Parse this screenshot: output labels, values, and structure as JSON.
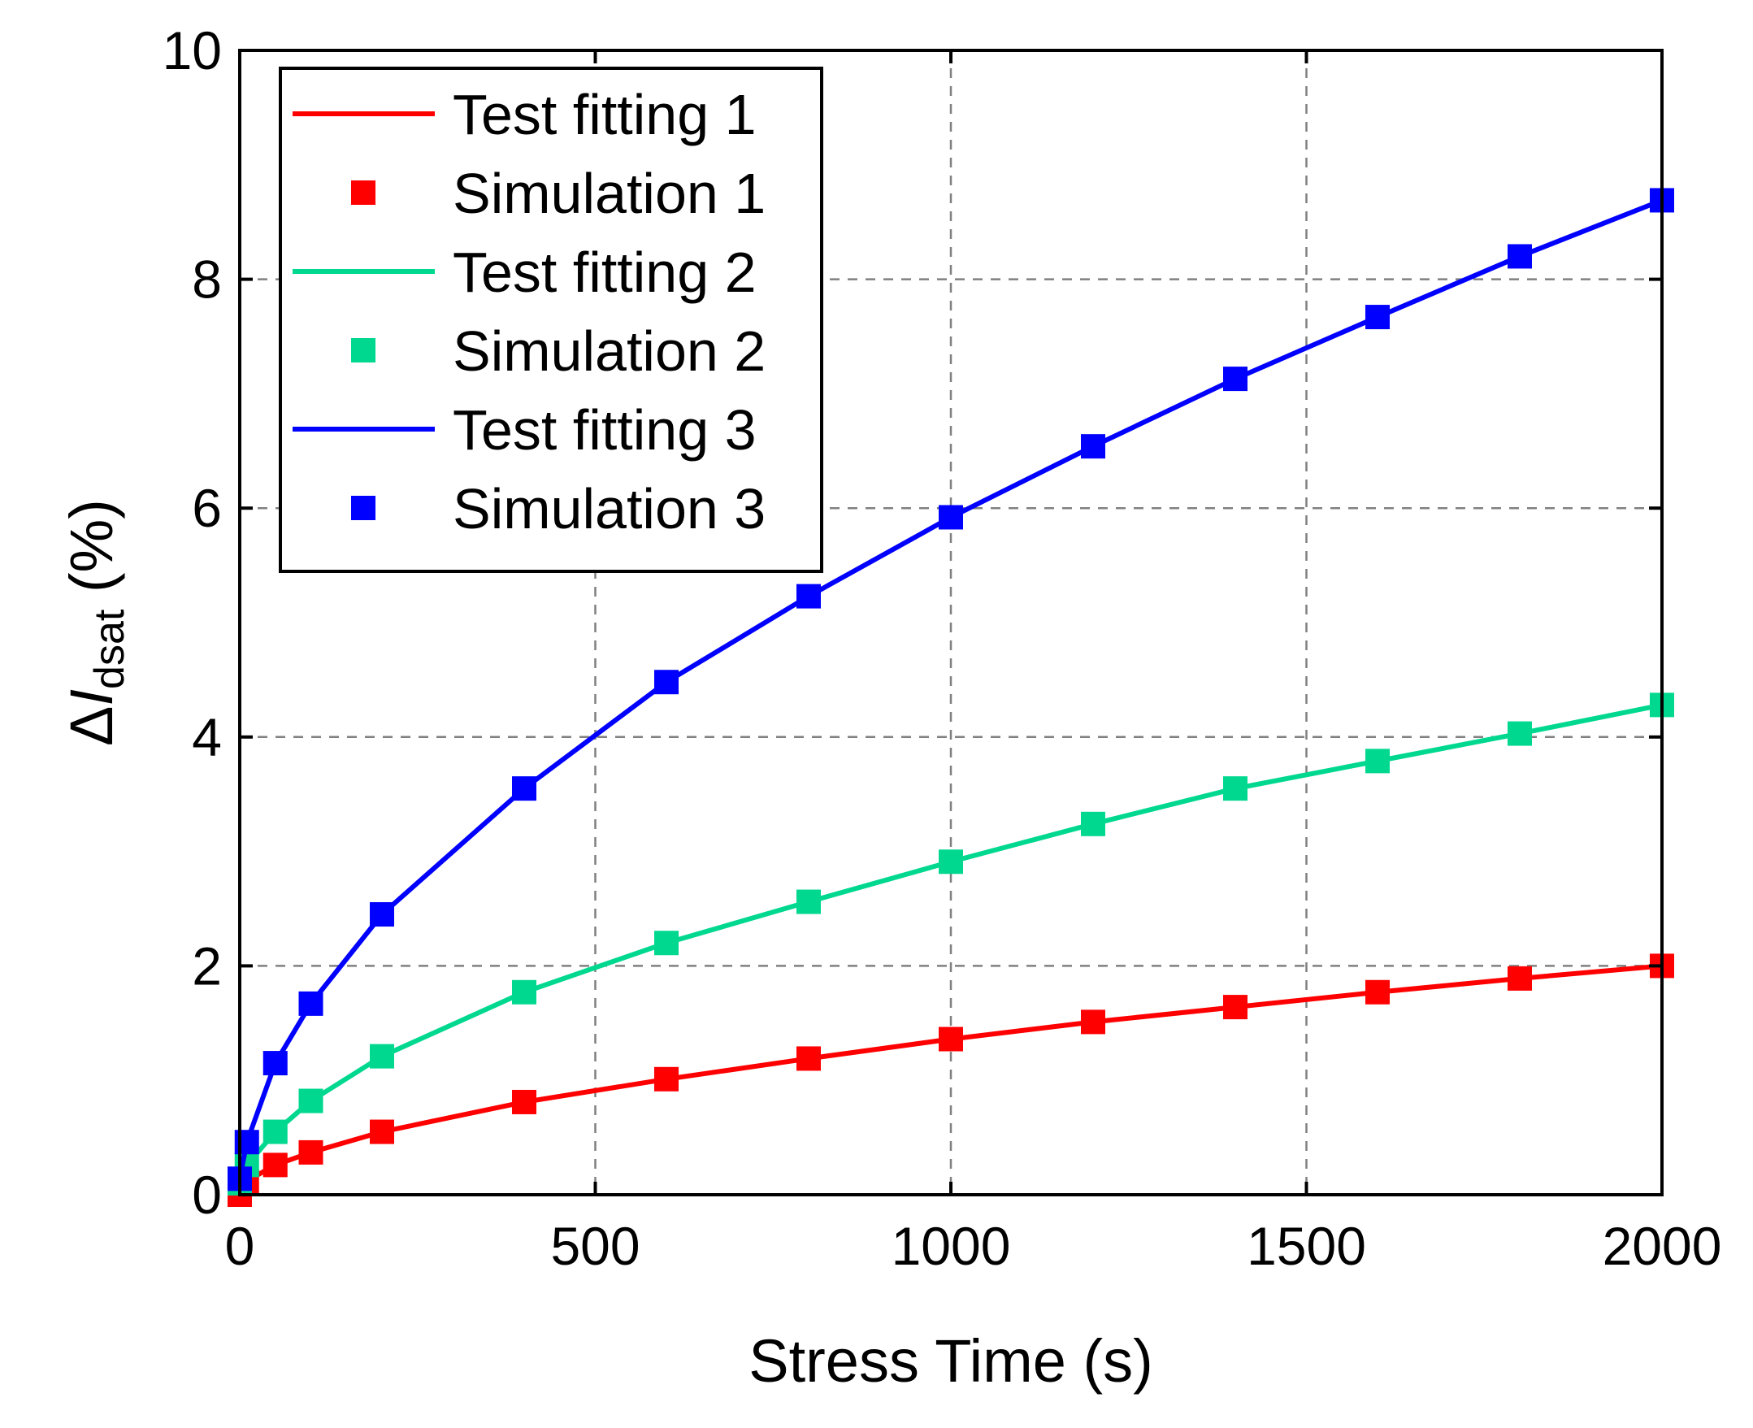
{
  "chart_data": {
    "type": "line",
    "title": "",
    "xlabel": "Stress Time (s)",
    "ylabel_delta": "Δ",
    "ylabel_italic": "I",
    "ylabel_sub": "dsat",
    "ylabel_suffix": " (%)",
    "xlim": [
      0,
      2000
    ],
    "ylim": [
      0,
      10
    ],
    "xticks": [
      0,
      500,
      1000,
      1500,
      2000
    ],
    "yticks": [
      0,
      2,
      4,
      6,
      8,
      10
    ],
    "grid": true,
    "legend_position": "top-left",
    "x": [
      0,
      10,
      50,
      100,
      200,
      400,
      600,
      800,
      1000,
      1200,
      1400,
      1600,
      1800,
      2000
    ],
    "series": [
      {
        "name": "Test fitting 1",
        "kind": "line",
        "color": "#ff0000",
        "values": [
          0.0,
          0.12,
          0.26,
          0.37,
          0.55,
          0.81,
          1.01,
          1.19,
          1.36,
          1.51,
          1.64,
          1.77,
          1.89,
          2.0
        ]
      },
      {
        "name": "Simulation 1",
        "kind": "marker",
        "color": "#ff0000",
        "values": [
          0.0,
          0.12,
          0.26,
          0.37,
          0.55,
          0.81,
          1.01,
          1.19,
          1.36,
          1.51,
          1.64,
          1.77,
          1.89,
          2.0
        ]
      },
      {
        "name": "Test fitting 2",
        "kind": "line",
        "color": "#00d890",
        "values": [
          0.1,
          0.26,
          0.55,
          0.82,
          1.21,
          1.77,
          2.2,
          2.56,
          2.91,
          3.24,
          3.55,
          3.79,
          4.03,
          4.28
        ]
      },
      {
        "name": "Simulation 2",
        "kind": "marker",
        "color": "#00d890",
        "values": [
          0.1,
          0.26,
          0.55,
          0.82,
          1.21,
          1.77,
          2.2,
          2.56,
          2.91,
          3.24,
          3.55,
          3.79,
          4.03,
          4.28
        ]
      },
      {
        "name": "Test fitting 3",
        "kind": "line",
        "color": "#0000ff",
        "values": [
          0.14,
          0.46,
          1.15,
          1.67,
          2.45,
          3.55,
          4.48,
          5.23,
          5.92,
          6.54,
          7.13,
          7.67,
          8.2,
          8.69
        ]
      },
      {
        "name": "Simulation 3",
        "kind": "marker",
        "color": "#0000ff",
        "values": [
          0.14,
          0.46,
          1.15,
          1.67,
          2.45,
          3.55,
          4.48,
          5.23,
          5.92,
          6.54,
          7.13,
          7.67,
          8.2,
          8.69
        ]
      }
    ]
  }
}
